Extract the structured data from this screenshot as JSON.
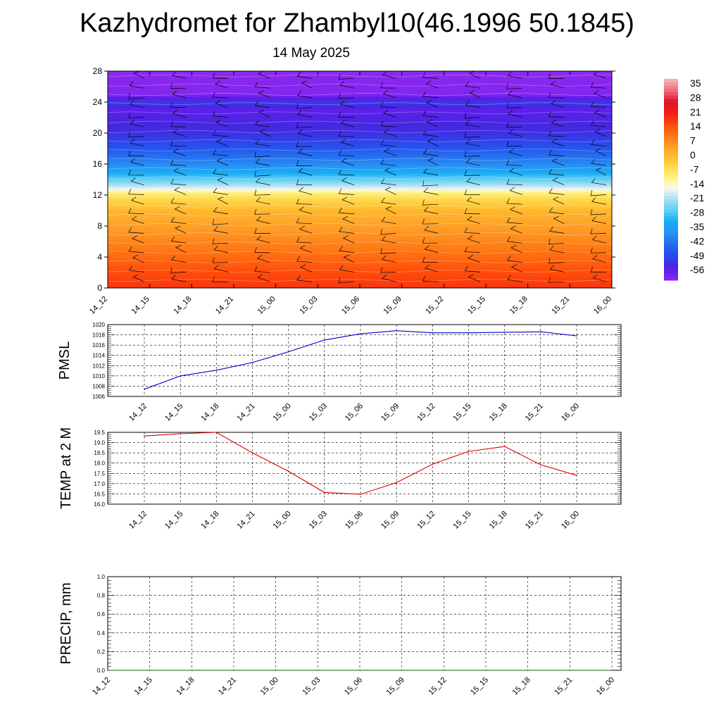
{
  "title": "Kazhydromet for Zhambyl10(46.1996 50.1845)",
  "subtitle": "14 May 2025",
  "time_labels": [
    "14_12",
    "14_15",
    "14_18",
    "14_21",
    "15_00",
    "15_03",
    "15_06",
    "15_09",
    "15_12",
    "15_15",
    "15_18",
    "15_21",
    "16_00"
  ],
  "colors": {
    "pmsl_line": "#0000cc",
    "temp_line": "#dd0000",
    "precip_line": "#006400",
    "grid": "#000000"
  },
  "chart_data": [
    {
      "type": "heatmap",
      "title": "",
      "xlabel": "",
      "ylabel": "",
      "x": [
        "14_12",
        "14_15",
        "14_18",
        "14_21",
        "15_00",
        "15_03",
        "15_06",
        "15_09",
        "15_12",
        "15_15",
        "15_18",
        "15_21",
        "16_00"
      ],
      "ylim": [
        0,
        28
      ],
      "yticks": [
        0,
        4,
        8,
        12,
        16,
        20,
        24,
        28
      ],
      "colorbar": {
        "labels": [
          "35",
          "28",
          "21",
          "14",
          "7",
          "0",
          "-7",
          "-14",
          "-21",
          "-28",
          "-35",
          "-42",
          "-49",
          "-56"
        ],
        "range": [
          -63,
          42
        ]
      },
      "profile": [
        {
          "level": 0,
          "value": 21
        },
        {
          "level": 2,
          "value": 18
        },
        {
          "level": 4,
          "value": 14
        },
        {
          "level": 6,
          "value": 10
        },
        {
          "level": 8,
          "value": 6
        },
        {
          "level": 10,
          "value": 2
        },
        {
          "level": 12,
          "value": -6
        },
        {
          "level": 13,
          "value": -18
        },
        {
          "level": 14,
          "value": -26
        },
        {
          "level": 15,
          "value": -33
        },
        {
          "level": 16,
          "value": -39
        },
        {
          "level": 18,
          "value": -48
        },
        {
          "level": 20,
          "value": -54
        },
        {
          "level": 22,
          "value": -56
        },
        {
          "level": 23,
          "value": -58
        },
        {
          "level": 24,
          "value": -52
        },
        {
          "level": 25,
          "value": -62
        },
        {
          "level": 28,
          "value": -63
        }
      ],
      "wind_barbs": "shown"
    },
    {
      "type": "line",
      "ylabel": "PMSL",
      "x": [
        "14_12",
        "14_15",
        "14_18",
        "14_21",
        "15_00",
        "15_03",
        "15_06",
        "15_09",
        "15_12",
        "15_15",
        "15_18",
        "15_21",
        "16_00"
      ],
      "series": [
        {
          "values": [
            1007.4,
            1010.0,
            1011.1,
            1012.6,
            1014.7,
            1017.0,
            1018.2,
            1018.8,
            1018.4,
            1018.4,
            1018.5,
            1018.6,
            1017.8
          ]
        }
      ],
      "ylim": [
        1006,
        1020
      ],
      "yticks": [
        1006,
        1008,
        1010,
        1012,
        1014,
        1016,
        1018,
        1020
      ],
      "grid": true
    },
    {
      "type": "line",
      "ylabel": "TEMP at 2 M",
      "x": [
        "14_12",
        "14_15",
        "14_18",
        "14_21",
        "15_00",
        "15_03",
        "15_06",
        "15_09",
        "15_12",
        "15_15",
        "15_18",
        "15_21",
        "16_00"
      ],
      "series": [
        {
          "values": [
            19.32,
            19.43,
            19.5,
            18.5,
            17.6,
            16.57,
            16.48,
            17.05,
            17.95,
            18.57,
            18.81,
            17.92,
            17.4
          ]
        }
      ],
      "ylim": [
        16.0,
        19.5
      ],
      "yticks": [
        "16.0",
        "16.5",
        "17.0",
        "17.5",
        "18.0",
        "18.5",
        "19.0",
        "19.5"
      ],
      "grid": true
    },
    {
      "type": "line",
      "ylabel": "PRECIP, mm",
      "x": [
        "14_12",
        "14_15",
        "14_18",
        "14_21",
        "15_00",
        "15_03",
        "15_06",
        "15_09",
        "15_12",
        "15_15",
        "15_18",
        "15_21",
        "16_00"
      ],
      "series": [
        {
          "values": [
            0,
            0,
            0,
            0,
            0,
            0,
            0,
            0,
            0,
            0,
            0,
            0,
            0
          ]
        }
      ],
      "ylim": [
        0,
        1
      ],
      "yticks": [
        "0.0",
        "0.2",
        "0.4",
        "0.6",
        "0.8",
        "1.0"
      ],
      "grid": true
    }
  ]
}
